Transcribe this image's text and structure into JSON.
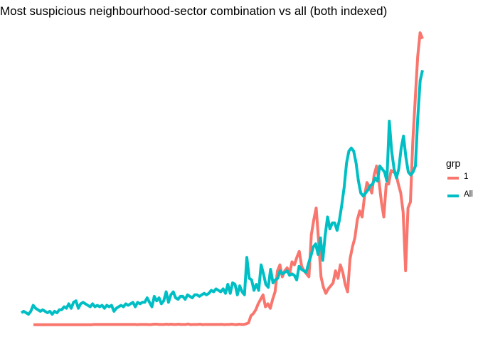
{
  "chart_data": {
    "type": "line",
    "title": "Most suspicious neighbourhood-sector combination vs all (both indexed)",
    "xlabel": "",
    "ylabel": "",
    "grid": false,
    "axes_visible": false,
    "legend": {
      "title": "grp",
      "position": "right"
    },
    "series": [
      {
        "name": "1",
        "color": "#F8766D",
        "values": [
          2,
          2,
          2,
          2,
          2,
          2,
          2,
          2,
          2,
          2,
          2,
          2,
          2,
          2,
          2,
          2,
          2,
          2,
          2,
          2,
          2,
          2,
          2,
          2,
          2,
          2,
          2,
          2,
          2,
          2,
          2.2,
          2.2,
          2.2,
          2.2,
          2.2,
          2.2,
          2.2,
          2.2,
          2.2,
          2.2,
          2.2,
          2.2,
          2.2,
          2.2,
          2.2,
          2.2,
          2.2,
          2.2,
          2.1,
          2.2,
          2.2,
          2.2,
          2.2,
          2.1,
          2.2,
          2.4,
          2.4,
          2.2,
          2.2,
          2.2,
          2.4,
          2.2,
          2.4,
          2.2,
          2.2,
          2.4,
          2.2,
          2.2,
          2.2,
          2.5,
          2.1,
          2.2,
          2.2,
          2.2,
          2.4,
          2.1,
          2.2,
          2.2,
          2.2,
          2.2,
          2.2,
          2.2,
          2.2,
          2.3,
          2.1,
          2.2,
          2.2,
          2.4,
          2.2,
          2.1,
          2.4,
          2.2,
          2.2,
          2.6,
          3.3,
          8,
          9.5,
          12,
          16,
          19,
          22,
          14,
          16,
          13,
          19,
          24,
          38,
          42,
          34,
          38,
          40,
          36,
          44,
          42,
          47,
          51,
          41,
          38,
          36,
          34,
          62,
          72,
          80,
          58,
          34,
          27,
          23,
          26,
          28,
          30,
          38,
          33,
          42,
          37,
          29,
          24,
          46,
          54,
          60,
          72,
          78,
          74,
          88,
          97,
          94,
          90,
          102,
          108,
          98,
          84,
          74,
          96,
          96,
          105,
          104,
          103,
          96,
          90,
          77,
          38,
          80,
          84,
          125,
          153,
          181,
          197,
          193
        ]
      },
      {
        "name": "All",
        "color": "#00BFC4",
        "values": [
          10,
          11,
          10,
          9,
          11,
          15,
          13,
          12,
          11,
          12,
          11,
          10,
          11,
          9,
          11,
          10,
          12,
          12,
          14,
          13,
          16,
          13,
          17,
          18,
          13,
          16,
          17,
          16,
          15,
          14,
          16,
          14,
          15,
          14,
          15,
          13,
          15,
          14,
          15,
          11,
          13,
          14,
          15,
          14,
          16,
          15,
          16,
          17,
          14,
          17,
          16,
          17,
          17,
          20,
          17,
          14,
          21,
          18,
          20,
          16,
          18,
          24,
          17,
          22,
          24,
          20,
          19,
          21,
          21,
          19,
          22,
          21,
          20,
          22,
          22,
          21,
          22,
          23,
          22,
          23,
          25,
          24,
          26,
          25,
          24,
          26,
          23,
          29,
          23,
          30,
          29,
          22,
          28,
          24,
          22,
          47,
          33,
          32,
          25,
          29,
          25,
          42,
          36,
          29,
          27,
          39,
          30,
          32,
          33,
          38,
          36,
          37,
          38,
          35,
          36,
          35,
          32,
          41,
          39,
          38,
          37,
          43,
          48,
          54,
          56,
          49,
          60,
          45,
          62,
          74,
          66,
          70,
          70,
          65,
          72,
          82,
          94,
          110,
          118,
          120,
          118,
          110,
          98,
          90,
          88,
          90,
          92,
          95,
          96,
          100,
          98,
          108,
          106,
          104,
          98,
          138,
          118,
          106,
          100,
          106,
          120,
          128,
          114,
          104,
          102,
          104,
          108,
          140,
          165,
          172
        ]
      }
    ]
  }
}
